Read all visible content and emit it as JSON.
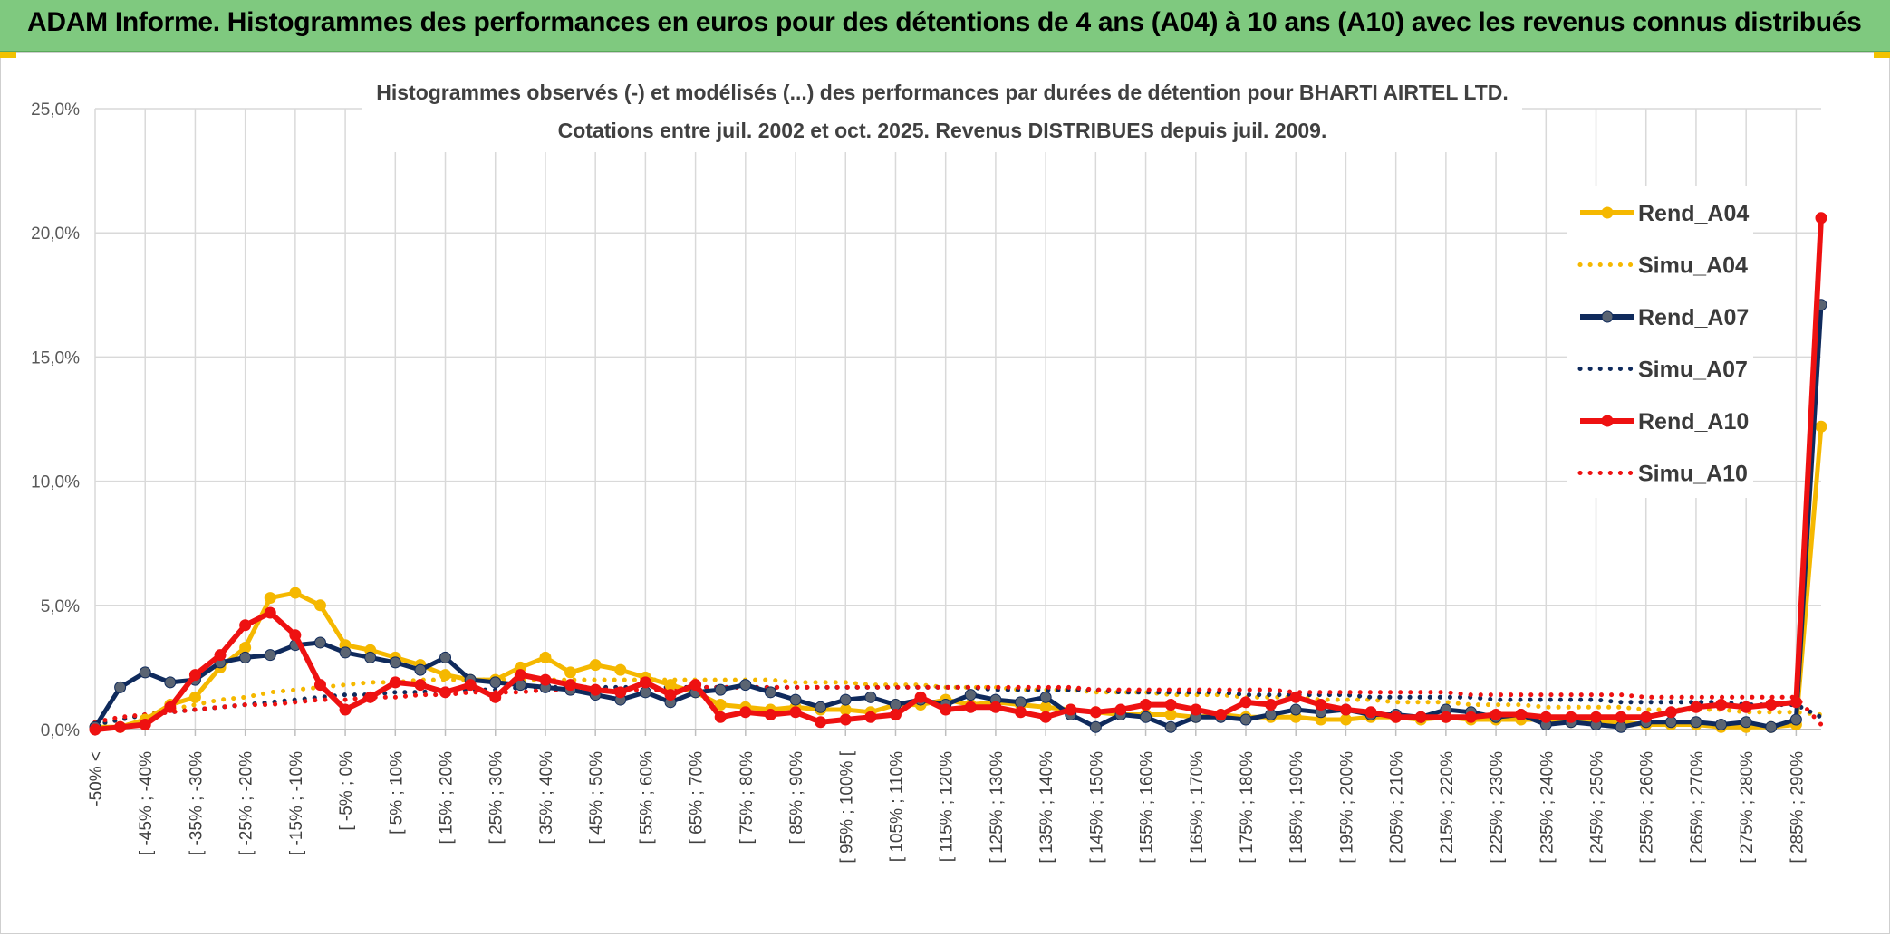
{
  "header": {
    "title": "ADAM Informe. Histogrammes des performances en euros pour des détentions de 4 ans (A04) à 10 ans (A10) avec les revenus connus distribués"
  },
  "colors": {
    "banner": "#7fc97f",
    "a04": "#f5b800",
    "a07": "#0f2a5c",
    "a10": "#ee1111",
    "grid": "#d9d9d9"
  },
  "chart_data": {
    "type": "line",
    "title": "Histogrammes observés (-) et modélisés (...) des performances par durées de détention pour BHARTI AIRTEL LTD.",
    "subtitle": "Cotations entre juil. 2002 et oct. 2025. Revenus DISTRIBUES depuis juil. 2009.",
    "xlabel": "",
    "ylabel": "",
    "ylim": [
      0,
      25
    ],
    "yticks": [
      "0,0%",
      "5,0%",
      "10,0%",
      "15,0%",
      "20,0%",
      "25,0%"
    ],
    "grid": true,
    "legend_position": "right",
    "xtick_labels": [
      "-50% <",
      "[ -45% ; -40%",
      "[ -35% ; -30%",
      "[ -25% ; -20%",
      "[ -15% ; -10%",
      "[ -5% ; 0%",
      "[ 5% ; 10%",
      "[ 15% ; 20%",
      "[ 25% ; 30%",
      "[ 35% ; 40%",
      "[ 45% ; 50%",
      "[ 55% ; 60%",
      "[ 65% ; 70%",
      "[ 75% ; 80%",
      "[ 85% ; 90%",
      "[ 95% ; 100% [",
      "[ 105% ; 110%",
      "[ 115% ; 120%",
      "[ 125% ; 130%",
      "[ 135% ; 140%",
      "[ 145% ; 150%",
      "[ 155% ; 160%",
      "[ 165% ; 170%",
      "[ 175% ; 180%",
      "[ 185% ; 190%",
      "[ 195% ; 200%",
      "[ 205% ; 210%",
      "[ 215% ; 220%",
      "[ 225% ; 230%",
      "[ 235% ; 240%",
      "[ 245% ; 250%",
      "[ 255% ; 260%",
      "[ 265% ; 270%",
      "[ 275% ; 280%",
      "[ 285% ; 290%"
    ],
    "n_bins": 70,
    "series": [
      {
        "name": "Rend_A04",
        "style": "solid",
        "color": "#f5b800",
        "values": [
          0.1,
          0.1,
          0.4,
          1.0,
          1.3,
          2.5,
          3.3,
          5.3,
          5.5,
          5.0,
          3.4,
          3.2,
          2.9,
          2.6,
          2.2,
          2.0,
          2.0,
          2.5,
          2.9,
          2.3,
          2.6,
          2.4,
          2.1,
          1.8,
          1.5,
          1.0,
          0.9,
          0.8,
          0.9,
          0.8,
          0.8,
          0.7,
          1.0,
          1.0,
          1.2,
          1.0,
          1.1,
          1.0,
          0.9,
          0.8,
          0.7,
          0.6,
          0.6,
          0.6,
          0.5,
          0.6,
          0.5,
          0.5,
          0.5,
          0.4,
          0.4,
          0.5,
          0.5,
          0.4,
          0.5,
          0.4,
          0.4,
          0.4,
          0.4,
          0.3,
          0.3,
          0.3,
          0.2,
          0.2,
          0.2,
          0.1,
          0.1,
          0.1,
          0.2,
          12.2
        ]
      },
      {
        "name": "Simu_A04",
        "style": "dotted",
        "color": "#f5b800",
        "values": [
          0.2,
          0.4,
          0.6,
          0.8,
          1.0,
          1.2,
          1.3,
          1.5,
          1.6,
          1.7,
          1.8,
          1.9,
          1.9,
          2.0,
          2.0,
          2.0,
          2.0,
          2.0,
          2.0,
          2.0,
          2.0,
          2.0,
          2.0,
          2.0,
          2.0,
          2.0,
          2.0,
          2.0,
          1.9,
          1.9,
          1.9,
          1.8,
          1.8,
          1.8,
          1.7,
          1.7,
          1.7,
          1.6,
          1.6,
          1.6,
          1.5,
          1.5,
          1.5,
          1.4,
          1.4,
          1.4,
          1.3,
          1.3,
          1.3,
          1.2,
          1.2,
          1.2,
          1.1,
          1.1,
          1.1,
          1.0,
          1.0,
          1.0,
          0.9,
          0.9,
          0.9,
          0.9,
          0.8,
          0.8,
          0.8,
          0.8,
          0.7,
          0.7,
          0.7,
          0.6
        ]
      },
      {
        "name": "Rend_A07",
        "style": "solid",
        "color": "#0f2a5c",
        "values": [
          0.1,
          1.7,
          2.3,
          1.9,
          2.0,
          2.7,
          2.9,
          3.0,
          3.4,
          3.5,
          3.1,
          2.9,
          2.7,
          2.4,
          2.9,
          2.0,
          1.9,
          1.8,
          1.7,
          1.6,
          1.4,
          1.2,
          1.5,
          1.1,
          1.5,
          1.6,
          1.8,
          1.5,
          1.2,
          0.9,
          1.2,
          1.3,
          1.0,
          1.2,
          1.0,
          1.4,
          1.2,
          1.1,
          1.3,
          0.6,
          0.1,
          0.6,
          0.5,
          0.1,
          0.5,
          0.5,
          0.4,
          0.6,
          0.8,
          0.7,
          0.8,
          0.6,
          0.6,
          0.5,
          0.8,
          0.7,
          0.5,
          0.6,
          0.2,
          0.3,
          0.2,
          0.1,
          0.3,
          0.3,
          0.3,
          0.2,
          0.3,
          0.1,
          0.4,
          17.1
        ]
      },
      {
        "name": "Simu_A07",
        "style": "dotted",
        "color": "#0f2a5c",
        "values": [
          0.2,
          0.4,
          0.6,
          0.7,
          0.8,
          0.9,
          1.0,
          1.1,
          1.2,
          1.3,
          1.4,
          1.4,
          1.5,
          1.5,
          1.6,
          1.6,
          1.6,
          1.7,
          1.7,
          1.7,
          1.7,
          1.7,
          1.7,
          1.7,
          1.7,
          1.7,
          1.7,
          1.7,
          1.7,
          1.7,
          1.7,
          1.7,
          1.7,
          1.7,
          1.7,
          1.7,
          1.6,
          1.6,
          1.6,
          1.6,
          1.6,
          1.5,
          1.5,
          1.5,
          1.5,
          1.5,
          1.4,
          1.4,
          1.4,
          1.4,
          1.4,
          1.3,
          1.3,
          1.3,
          1.3,
          1.3,
          1.2,
          1.2,
          1.2,
          1.2,
          1.2,
          1.1,
          1.1,
          1.1,
          1.1,
          1.1,
          1.0,
          1.0,
          1.0,
          0.5
        ]
      },
      {
        "name": "Rend_A10",
        "style": "solid",
        "color": "#ee1111",
        "values": [
          0.0,
          0.1,
          0.2,
          0.9,
          2.2,
          3.0,
          4.2,
          4.7,
          3.8,
          1.8,
          0.8,
          1.3,
          1.9,
          1.8,
          1.5,
          1.8,
          1.3,
          2.2,
          2.0,
          1.8,
          1.6,
          1.5,
          1.9,
          1.4,
          1.8,
          0.5,
          0.7,
          0.6,
          0.7,
          0.3,
          0.4,
          0.5,
          0.6,
          1.3,
          0.8,
          0.9,
          0.9,
          0.7,
          0.5,
          0.8,
          0.7,
          0.8,
          1.0,
          1.0,
          0.8,
          0.6,
          1.1,
          1.0,
          1.3,
          1.0,
          0.8,
          0.7,
          0.5,
          0.5,
          0.5,
          0.5,
          0.6,
          0.6,
          0.5,
          0.5,
          0.5,
          0.5,
          0.5,
          0.7,
          0.9,
          1.0,
          0.9,
          1.0,
          1.1,
          20.6
        ]
      },
      {
        "name": "Simu_A10",
        "style": "dotted",
        "color": "#ee1111",
        "values": [
          0.3,
          0.5,
          0.6,
          0.7,
          0.8,
          0.9,
          1.0,
          1.0,
          1.1,
          1.2,
          1.2,
          1.3,
          1.3,
          1.4,
          1.4,
          1.5,
          1.5,
          1.5,
          1.6,
          1.6,
          1.6,
          1.6,
          1.6,
          1.6,
          1.7,
          1.7,
          1.7,
          1.7,
          1.7,
          1.7,
          1.7,
          1.7,
          1.7,
          1.7,
          1.7,
          1.7,
          1.7,
          1.7,
          1.7,
          1.7,
          1.6,
          1.6,
          1.6,
          1.6,
          1.6,
          1.6,
          1.6,
          1.6,
          1.5,
          1.5,
          1.5,
          1.5,
          1.5,
          1.5,
          1.5,
          1.4,
          1.4,
          1.4,
          1.4,
          1.4,
          1.4,
          1.4,
          1.3,
          1.3,
          1.3,
          1.3,
          1.3,
          1.3,
          1.3,
          0.2
        ]
      }
    ]
  }
}
